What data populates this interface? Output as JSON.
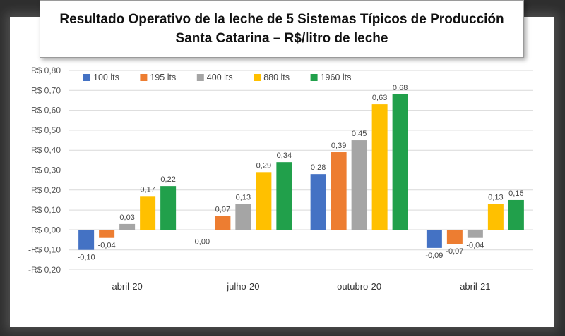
{
  "title": {
    "line1": "Resultado Operativo de la leche de 5 Sistemas Típicos de Producción",
    "line2": "Santa Catarina – R$/litro de leche"
  },
  "chart_data": {
    "type": "bar",
    "title": "Resultado Operativo de la leche de 5 Sistemas Típicos de Producción Santa Catarina – R$/litro de leche",
    "xlabel": "",
    "ylabel": "",
    "ylim": [
      -0.2,
      0.8
    ],
    "yticks": [
      0.8,
      0.7,
      0.6,
      0.5,
      0.4,
      0.3,
      0.2,
      0.1,
      0.0,
      -0.1,
      -0.2
    ],
    "ytick_labels": [
      "R$ 0,80",
      "R$ 0,70",
      "R$ 0,60",
      "R$ 0,50",
      "R$ 0,40",
      "R$ 0,30",
      "R$ 0,20",
      "R$ 0,10",
      "R$ 0,00",
      "-R$ 0,10",
      "-R$ 0,20"
    ],
    "grid": true,
    "legend_position": "top-left",
    "categories": [
      "abril-20",
      "julho-20",
      "outubro-20",
      "abril-21"
    ],
    "series": [
      {
        "name": "100 lts",
        "color": "#4472c4",
        "values": [
          -0.1,
          0.0,
          0.28,
          -0.09
        ],
        "labels": [
          "-0,10",
          "0,00",
          "0,28",
          "-0,09"
        ]
      },
      {
        "name": "195 lts",
        "color": "#ed7d31",
        "values": [
          -0.04,
          0.07,
          0.39,
          -0.07
        ],
        "labels": [
          "-0,04",
          "0,07",
          "0,39",
          "-0,07"
        ]
      },
      {
        "name": "400 lts",
        "color": "#a5a5a5",
        "values": [
          0.03,
          0.13,
          0.45,
          -0.04
        ],
        "labels": [
          "0,03",
          "0,13",
          "0,45",
          "-0,04"
        ]
      },
      {
        "name": "880 lts",
        "color": "#ffc000",
        "values": [
          0.17,
          0.29,
          0.63,
          0.13
        ],
        "labels": [
          "0,17",
          "0,29",
          "0,63",
          "0,13"
        ]
      },
      {
        "name": "1960 lts",
        "color": "#21a04b",
        "values": [
          0.22,
          0.34,
          0.68,
          0.15
        ],
        "labels": [
          "0,22",
          "0,34",
          "0,68",
          "0,15"
        ]
      }
    ]
  }
}
